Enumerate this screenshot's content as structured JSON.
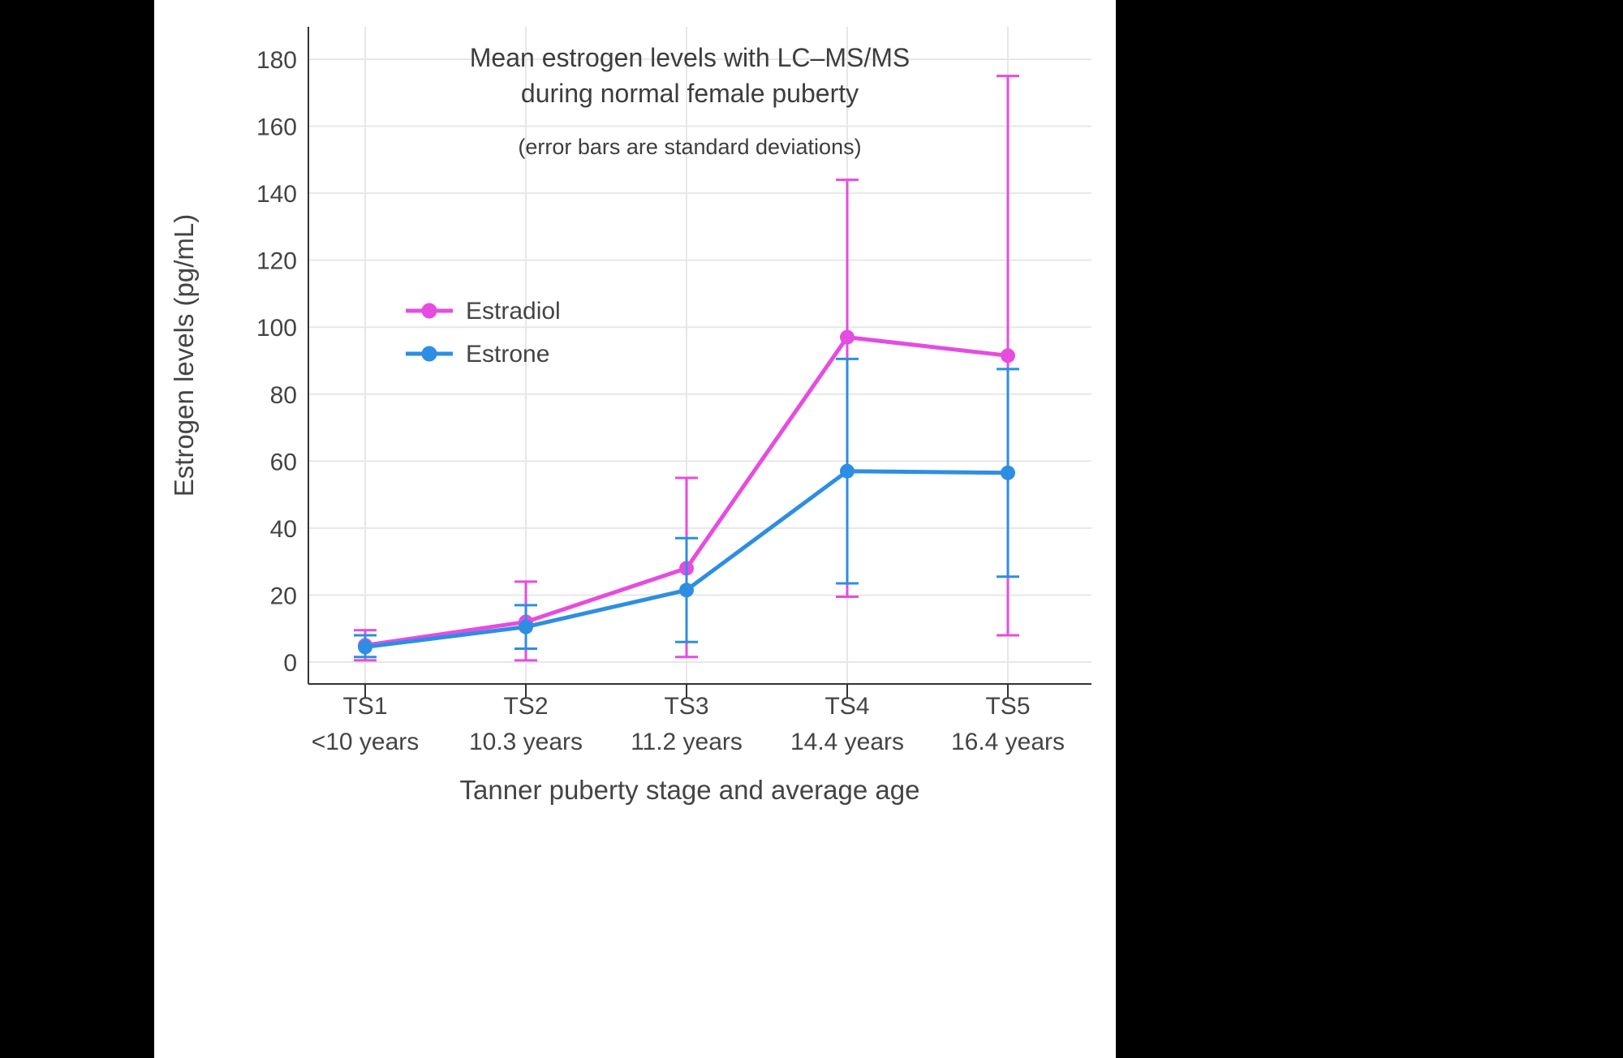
{
  "figure": {
    "title_line1": "Mean estrogen levels with LC–MS/MS",
    "title_line2": "during normal female puberty",
    "subtitle": "(error bars are standard deviations)",
    "ylabel": "Estrogen levels (pg/mL)",
    "xlabel": "Tanner puberty stage and average age"
  },
  "chart_data": {
    "type": "line",
    "title": "Mean estrogen levels with LC–MS/MS during normal female puberty",
    "subtitle": "(error bars are standard deviations)",
    "xlabel": "Tanner puberty stage and average age",
    "ylabel": "Estrogen levels (pg/mL)",
    "categories": [
      "TS1",
      "TS2",
      "TS3",
      "TS4",
      "TS5"
    ],
    "category_sublabels": [
      "<10 years",
      "10.3 years",
      "11.2 years",
      "14.4 years",
      "16.4 years"
    ],
    "yticks": [
      0,
      20,
      40,
      60,
      80,
      100,
      120,
      140,
      160,
      180
    ],
    "ylim": [
      0,
      190
    ],
    "grid": true,
    "legend_position": "inside-upper-left",
    "error_bar_meaning": "standard deviation",
    "series": [
      {
        "name": "Estradiol",
        "color": "#e64ce0",
        "means": [
          5,
          12,
          28,
          97,
          91.5
        ],
        "sd_low": [
          0.5,
          0.5,
          1.5,
          19.5,
          8
        ],
        "sd_high": [
          9.5,
          24,
          55,
          144,
          175
        ]
      },
      {
        "name": "Estrone",
        "color": "#2d8ee3",
        "means": [
          4.5,
          10.5,
          21.5,
          57,
          56.5
        ],
        "sd_low": [
          1.5,
          4,
          6,
          23.5,
          25.5
        ],
        "sd_high": [
          8,
          17,
          37,
          90.5,
          87.5
        ]
      }
    ]
  }
}
